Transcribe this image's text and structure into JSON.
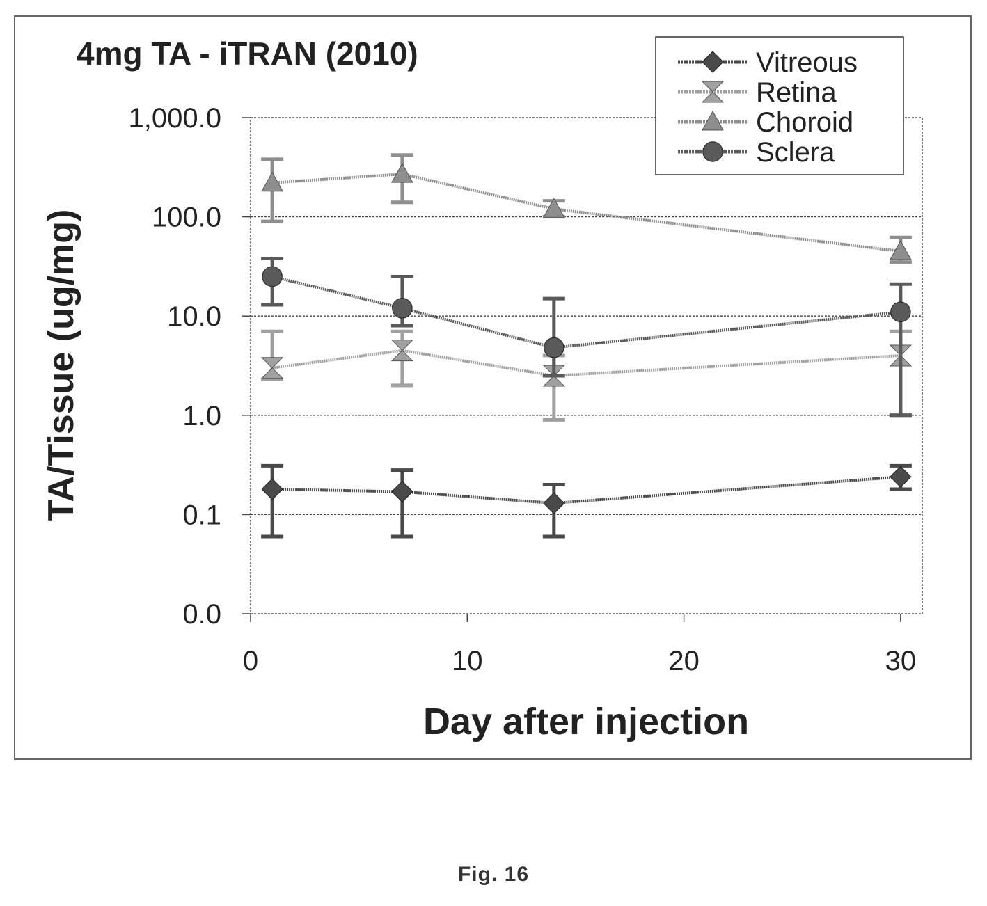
{
  "chart_data": {
    "type": "line",
    "title": "4mg TA - iTRAN (2010)",
    "xlabel": "Day after injection",
    "ylabel": "TA/Tissue (ug/mg)",
    "xlim": [
      0,
      31
    ],
    "x_ticks": [
      0,
      10,
      20,
      30
    ],
    "x_tick_labels": [
      "0",
      "10",
      "20",
      "30"
    ],
    "ylim": [
      0.01,
      1000
    ],
    "y_scale": "log",
    "y_ticks": [
      0.01,
      0.1,
      1,
      10,
      100,
      1000
    ],
    "y_tick_labels": [
      "0.0",
      "0.1",
      "1.0",
      "10.0",
      "100.0",
      "1,000.0"
    ],
    "grid": "horizontal",
    "legend_position": "top-right",
    "series": [
      {
        "name": "Vitreous",
        "color": "#4a4a4a",
        "marker": "diamond",
        "x": [
          1,
          7,
          14,
          30
        ],
        "y": [
          0.18,
          0.17,
          0.13,
          0.24
        ],
        "err_low": [
          0.06,
          0.06,
          0.06,
          0.18
        ],
        "err_high": [
          0.31,
          0.28,
          0.2,
          0.31
        ]
      },
      {
        "name": "Retina",
        "color": "#a0a0a0",
        "marker": "bowtie",
        "x": [
          1,
          7,
          14,
          30
        ],
        "y": [
          3.0,
          4.5,
          2.5,
          4.0
        ],
        "err_low": [
          2.3,
          2.0,
          0.9,
          1.0
        ],
        "err_high": [
          7.0,
          7.0,
          4.0,
          7.0
        ]
      },
      {
        "name": "Choroid",
        "color": "#8e8e8e",
        "marker": "triangle",
        "x": [
          1,
          7,
          14,
          30
        ],
        "y": [
          220,
          270,
          120,
          45
        ],
        "err_low": [
          90,
          140,
          100,
          35
        ],
        "err_high": [
          380,
          420,
          145,
          62
        ]
      },
      {
        "name": "Sclera",
        "color": "#5a5a5a",
        "marker": "circle",
        "x": [
          1,
          7,
          14,
          30
        ],
        "y": [
          25,
          12,
          4.8,
          11
        ],
        "err_low": [
          13,
          8,
          2.5,
          1.0
        ],
        "err_high": [
          38,
          25,
          15,
          21
        ]
      }
    ]
  },
  "caption": "Fig. 16"
}
